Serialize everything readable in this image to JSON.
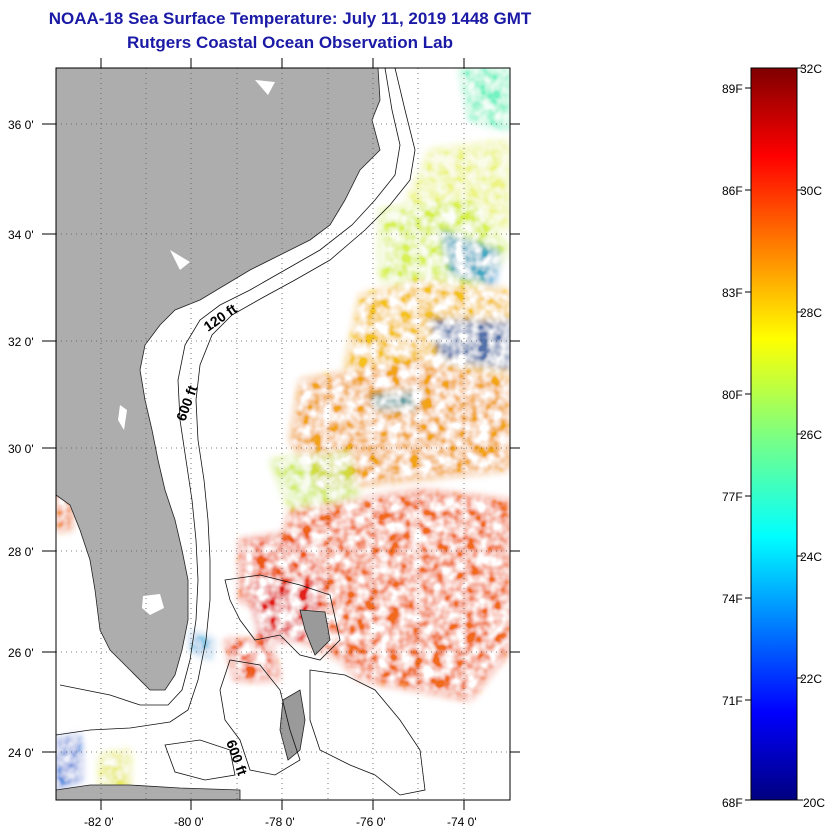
{
  "header": {
    "title": "NOAA-18 Sea Surface Temperature:  July 11, 2019 1448 GMT",
    "subtitle": "Rutgers Coastal Ocean Observation Lab"
  },
  "map": {
    "lat_labels": [
      "36 0'",
      "34 0'",
      "32 0'",
      "30 0'",
      "28 0'",
      "26 0'",
      "24 0'"
    ],
    "lon_labels": [
      "-82 0'",
      "-80 0'",
      "-78 0'",
      "-76 0'",
      "-74 0'"
    ],
    "contour_labels": [
      "120 ft",
      "600 ft",
      "600 ft"
    ],
    "colors": {
      "land": "#adadad",
      "no_data": "#ffffff",
      "graticule": "#555555"
    }
  },
  "colorbar": {
    "celsius_labels": [
      "32C",
      "30C",
      "28C",
      "26C",
      "24C",
      "22C",
      "20C"
    ],
    "fahrenheit_labels": [
      "89F",
      "86F",
      "83F",
      "80F",
      "77F",
      "74F",
      "71F",
      "68F"
    ],
    "range_celsius": [
      20,
      32
    ],
    "scale": "jet"
  }
}
